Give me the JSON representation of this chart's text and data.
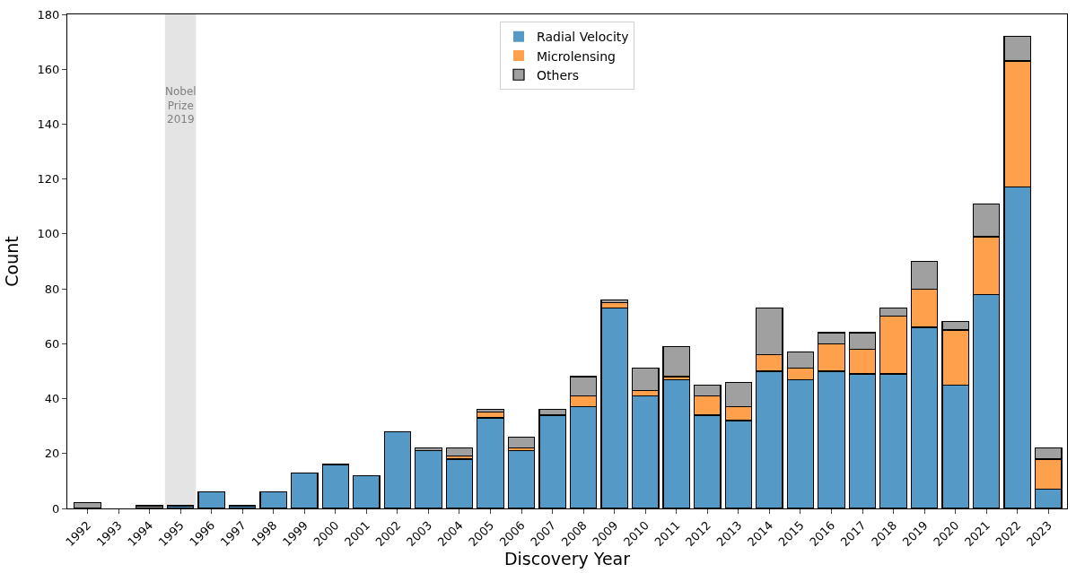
{
  "chart_data": {
    "type": "bar",
    "stacked": true,
    "xlabel": "Discovery Year",
    "ylabel": "Count",
    "x": [
      1992,
      1993,
      1994,
      1995,
      1996,
      1997,
      1998,
      1999,
      2000,
      2001,
      2002,
      2003,
      2004,
      2005,
      2006,
      2007,
      2008,
      2009,
      2010,
      2011,
      2012,
      2013,
      2014,
      2015,
      2016,
      2017,
      2018,
      2019,
      2020,
      2021,
      2022,
      2023
    ],
    "series": [
      {
        "name": "Radial Velocity",
        "color": "#5599c7",
        "values": [
          0,
          0,
          0,
          1,
          6,
          1,
          6,
          13,
          16,
          12,
          28,
          21,
          18,
          33,
          21,
          34,
          37,
          73,
          41,
          47,
          34,
          32,
          50,
          47,
          50,
          49,
          49,
          66,
          45,
          78,
          117,
          7
        ]
      },
      {
        "name": "Microlensing",
        "color": "#ffa04d",
        "values": [
          0,
          0,
          0,
          0,
          0,
          0,
          0,
          0,
          0,
          0,
          0,
          0,
          1,
          2,
          1,
          0,
          4,
          2,
          2,
          1,
          7,
          5,
          6,
          4,
          10,
          9,
          21,
          14,
          20,
          21,
          46,
          11
        ]
      },
      {
        "name": "Others",
        "color": "#a0a0a0",
        "values": [
          2,
          0,
          1,
          0,
          0,
          0,
          0,
          0,
          0,
          0,
          0,
          1,
          3,
          1,
          4,
          2,
          7,
          1,
          8,
          11,
          4,
          9,
          17,
          6,
          4,
          6,
          3,
          10,
          3,
          12,
          9,
          4
        ]
      }
    ],
    "xlim": [
      1991.35,
      2023.6
    ],
    "xticks": [
      1992,
      1993,
      1994,
      1995,
      1996,
      1997,
      1998,
      1999,
      2000,
      2001,
      2002,
      2003,
      2004,
      2005,
      2006,
      2007,
      2008,
      2009,
      2010,
      2011,
      2012,
      2013,
      2014,
      2015,
      2016,
      2017,
      2018,
      2019,
      2020,
      2021,
      2022,
      2023
    ],
    "ylim": [
      0,
      180
    ],
    "yticks": [
      0,
      20,
      40,
      60,
      80,
      100,
      120,
      140,
      160,
      180
    ],
    "bands": [
      {
        "axis": "x",
        "from": 1994.5,
        "to": 1995.5,
        "label": "Nobel\nPrize\n2019",
        "color": "#e4e4e4"
      }
    ],
    "grid": false,
    "legend": "top"
  }
}
